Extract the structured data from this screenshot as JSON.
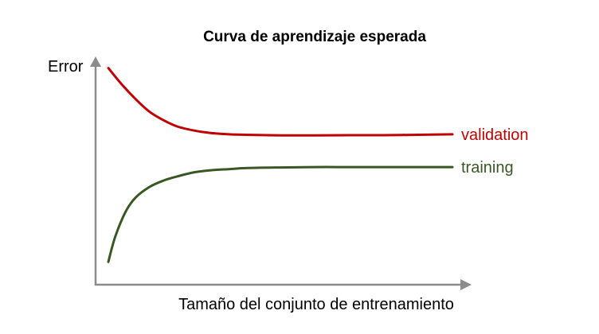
{
  "chart_data": {
    "type": "line",
    "title": "Curva de aprendizaje esperada",
    "xlabel": "Tamaño del conjunto de entrenamiento",
    "ylabel": "Error",
    "grid": false,
    "ticks": false,
    "xlim": [
      0,
      1
    ],
    "ylim": [
      0,
      1
    ],
    "series": [
      {
        "name": "validation",
        "color": "#c00000",
        "x": [
          0,
          0.04,
          0.08,
          0.12,
          0.16,
          0.2,
          0.25,
          0.3,
          0.35,
          0.4,
          0.5,
          0.6,
          0.7,
          0.8,
          0.9,
          1.0
        ],
        "y": [
          0.99,
          0.91,
          0.84,
          0.78,
          0.74,
          0.71,
          0.69,
          0.678,
          0.672,
          0.67,
          0.667,
          0.667,
          0.668,
          0.668,
          0.67,
          0.672
        ]
      },
      {
        "name": "training",
        "color": "#385723",
        "x": [
          0,
          0.02,
          0.05,
          0.08,
          0.12,
          0.16,
          0.2,
          0.25,
          0.3,
          0.35,
          0.4,
          0.5,
          0.6,
          0.7,
          0.8,
          0.9,
          1.0
        ],
        "y": [
          0.06,
          0.18,
          0.3,
          0.37,
          0.42,
          0.45,
          0.47,
          0.49,
          0.5,
          0.505,
          0.51,
          0.513,
          0.515,
          0.515,
          0.515,
          0.515,
          0.515
        ]
      }
    ]
  }
}
